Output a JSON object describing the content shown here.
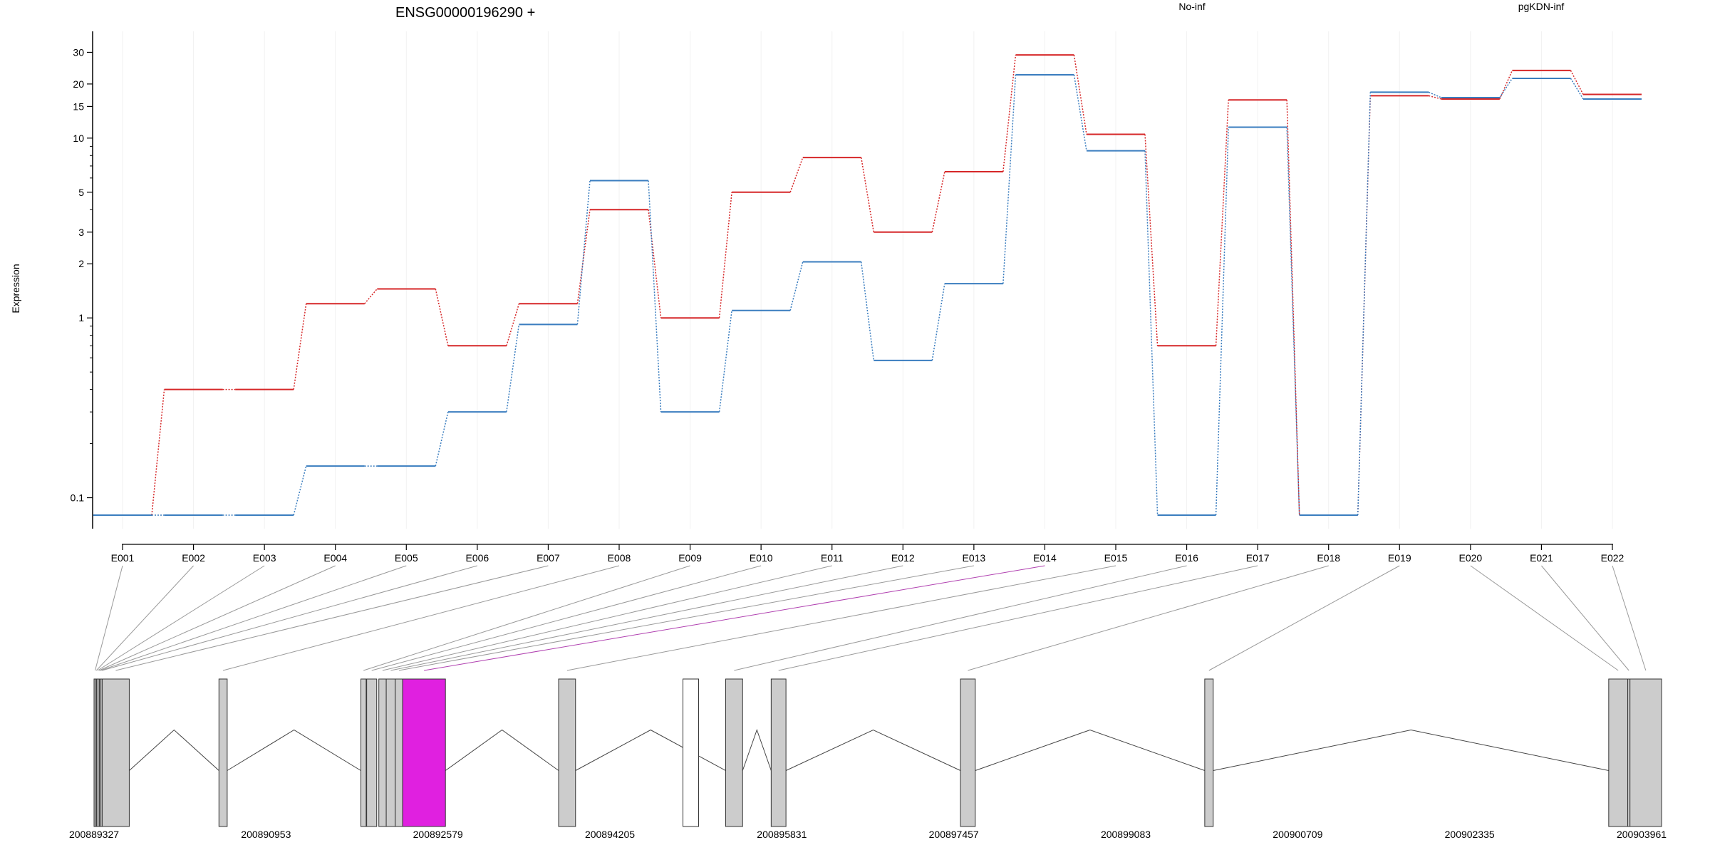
{
  "chart_data": {
    "type": "line",
    "title": "ENSG00000196290 +",
    "ylabel": "Expression",
    "yscale": "log",
    "ylim": [
      0.08,
      33
    ],
    "yticks": [
      0.1,
      1,
      2,
      3,
      5,
      10,
      15,
      20,
      30
    ],
    "ytick_labels": [
      "0.1",
      "1",
      "2",
      "3",
      "5",
      "10",
      "15",
      "20",
      "30"
    ],
    "grid": "vertical light",
    "legend_position": "top",
    "categories": [
      "E001",
      "E002",
      "E003",
      "E004",
      "E005",
      "E006",
      "E007",
      "E008",
      "E009",
      "E010",
      "E011",
      "E012",
      "E013",
      "E014",
      "E015",
      "E016",
      "E017",
      "E018",
      "E019",
      "E020",
      "E021",
      "E022"
    ],
    "series": [
      {
        "name": "No-inf",
        "color": "#d62728",
        "values": [
          0.08,
          0.4,
          0.4,
          1.2,
          1.45,
          0.7,
          1.2,
          4.0,
          1.0,
          5.0,
          7.8,
          3.0,
          6.5,
          29.0,
          10.5,
          0.7,
          16.3,
          0.08,
          17.2,
          16.5,
          23.8,
          17.5
        ]
      },
      {
        "name": "pgKDN-inf",
        "color": "#3a7dbf",
        "values": [
          0.08,
          0.08,
          0.08,
          0.15,
          0.15,
          0.3,
          0.92,
          5.8,
          0.3,
          1.1,
          2.05,
          0.58,
          1.55,
          22.5,
          8.5,
          0.08,
          11.5,
          0.08,
          18.0,
          16.8,
          21.5,
          16.5
        ]
      }
    ],
    "gene_model": {
      "genomic_ticks": [
        "200889327",
        "200890953",
        "200892579",
        "200894205",
        "200895831",
        "200897457",
        "200899083",
        "200900709",
        "200902335",
        "200903961"
      ],
      "genomic_start": 200889327,
      "genomic_end": 200903961,
      "exons": [
        {
          "id": "E001",
          "start": 200889327,
          "end": 200889337
        },
        {
          "id": "E002",
          "start": 200889339,
          "end": 200889349
        },
        {
          "id": "E003",
          "start": 200889351,
          "end": 200889361
        },
        {
          "id": "E004",
          "start": 200889365,
          "end": 200889375
        },
        {
          "id": "E005",
          "start": 200889378,
          "end": 200889388
        },
        {
          "id": "E006",
          "start": 200889392,
          "end": 200889402
        },
        {
          "id": "E007",
          "start": 200889404,
          "end": 200889660
        },
        {
          "id": "E008",
          "start": 200890508,
          "end": 200890586
        },
        {
          "id": "E009",
          "start": 200891850,
          "end": 200891900
        },
        {
          "id": "E010",
          "start": 200891905,
          "end": 200892000
        },
        {
          "id": "E011",
          "start": 200892020,
          "end": 200892090
        },
        {
          "id": "E012",
          "start": 200892090,
          "end": 200892175
        },
        {
          "id": "E013",
          "start": 200892175,
          "end": 200892245
        },
        {
          "id": "E014",
          "start": 200892245,
          "end": 200892650
        },
        {
          "id": "E015",
          "start": 200893720,
          "end": 200893880
        },
        {
          "id": "E016",
          "start": 200895300,
          "end": 200895460
        },
        {
          "id": "E017",
          "start": 200895730,
          "end": 200895870
        },
        {
          "id": "E018",
          "start": 200897520,
          "end": 200897660
        },
        {
          "id": "E019",
          "start": 200899830,
          "end": 200899910
        },
        {
          "id": "E020",
          "start": 200903650,
          "end": 200903830
        },
        {
          "id": "E021",
          "start": 200903830,
          "end": 200903851
        },
        {
          "id": "E022",
          "start": 200903851,
          "end": 200904150
        }
      ],
      "highlight_exon": "E014",
      "highlight_color": "#e020e0",
      "exon_fill": "#cccccc",
      "extra_feature": {
        "start": 200895300,
        "end": 200895460,
        "fill": "#ffffff"
      }
    }
  }
}
